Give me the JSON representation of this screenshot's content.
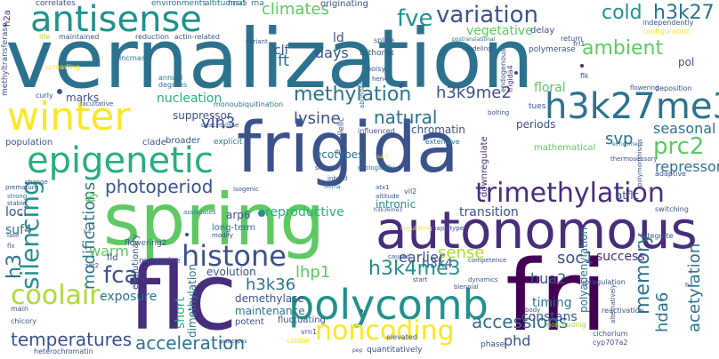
{
  "palette": {
    "dark_purple": "#440154",
    "indigo": "#472d7b",
    "blue": "#3b528b",
    "slate": "#2c728e",
    "teal": "#21918c",
    "green_teal": "#28ae80",
    "green": "#5ec962",
    "lime": "#addc30",
    "yellow": "#fde725"
  },
  "words": [
    "vernalization",
    "frigida",
    "spring",
    "flc",
    "fri",
    "autonomous",
    "antisense",
    "winter",
    "epigenetic",
    "polycomb",
    "h3k27me3",
    "histone",
    "trimethylation",
    "variation",
    "silencing",
    "coolair",
    "noncoding",
    "methylation",
    "fca",
    "h3k4me3",
    "memory",
    "photoperiod",
    "fve",
    "cold",
    "temperatures",
    "acceleration",
    "prc2",
    "h3k27",
    "ambient",
    "climates",
    "natural",
    "vin3",
    "h3k36",
    "soc1",
    "accessions",
    "lysine",
    "h3k9me2",
    "modifications",
    "lhp1",
    "hda6",
    "acetylation",
    "svp",
    "sense",
    "reproductive",
    "days",
    "warm",
    "seasonal",
    "repressor",
    "earlier",
    "h3k4",
    "transition",
    "clf",
    "ft",
    "ld",
    "nucleation",
    "suppressor",
    "chromatin",
    "ecotypes",
    "intronic",
    "dimethylation",
    "phd",
    "hua2",
    "timing",
    "success",
    "short",
    "exposure",
    "maintenance",
    "evolution",
    "demethylase",
    "constans",
    "polyadenylation",
    "atflc",
    "floral",
    "vegetative",
    "periods",
    "marks",
    "mathematical",
    "downregulate",
    "population",
    "loci",
    "suf4",
    "h3",
    "fy",
    "fld",
    "arp6",
    "long-term",
    "h2a",
    "correlates",
    "environments",
    "altitudinal",
    "msi5",
    "rna",
    "originating",
    "methyltransferase",
    "life",
    "maintained",
    "reduction",
    "actin-related",
    "lncrnas",
    "variant",
    "trithorax",
    "noisy",
    "splice",
    "postranslational",
    "delay",
    "return",
    "independently",
    "configuration",
    "polymerase",
    "frl1",
    "flk",
    "pol",
    "deposition",
    "spreading",
    "annual",
    "degrees",
    "modeling",
    "endogenous",
    "frigida4",
    "curly",
    "facultative",
    "monoubiquitination",
    "deacetylase",
    "clade",
    "broader",
    "explicit",
    "abundance",
    "allelic",
    "influenced",
    "extensive",
    "box",
    "hen4",
    "sar1",
    "bolting",
    "tues",
    "thermosensory",
    "enrichment",
    "adaptive",
    "switching",
    "situations",
    "ecologically",
    "inbred",
    "lncrna",
    "atx1",
    "vil2",
    "altitude",
    "isogenic",
    "associates",
    "premature",
    "late",
    "change",
    "strong",
    "stable",
    "flx",
    "evolutionary",
    "modify",
    "k4",
    "set2",
    "h3k36me3",
    "haplotypes",
    "regulating",
    "caused",
    "competence",
    "flowering2",
    "repressive",
    "start",
    "biennial",
    "upregulation",
    "fluctuating",
    "potent",
    "non-coding",
    "vrn1",
    "elevated",
    "coldair",
    "genotypes",
    "main",
    "chicory",
    "heterochromatin",
    "dynamics",
    "pep",
    "quantitatively",
    "phase",
    "cichorium",
    "cyp707a2",
    "reactivation",
    "body",
    "integrate",
    "polymorphisms",
    "alternatively",
    "h4",
    "flowering"
  ]
}
